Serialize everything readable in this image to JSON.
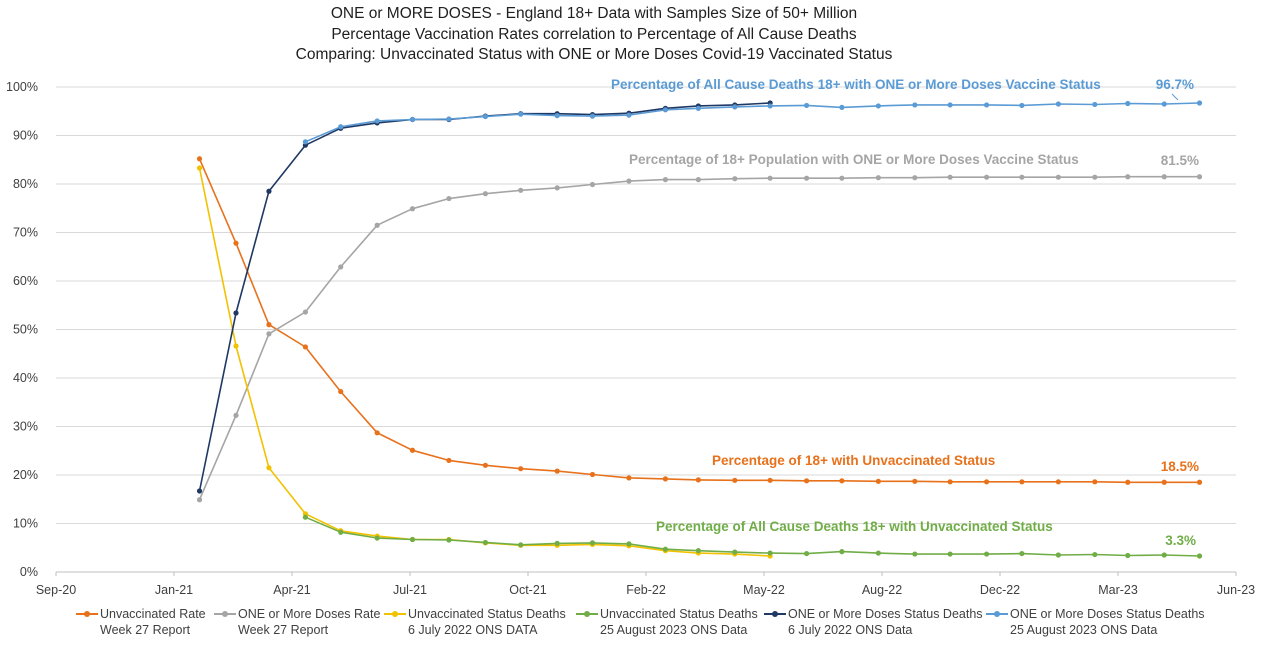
{
  "title_lines": [
    "ONE or MORE DOSES - England 18+ Data with Samples Size of 50+ Million",
    "Percentage Vaccination Rates correlation to Percentage of All Cause Deaths",
    "Comparing: Unvaccinated Status with ONE or More Doses Covid-19 Vaccinated Status"
  ],
  "legend": [
    {
      "line1": "Unvaccinated Rate",
      "line2": "Week 27 Report"
    },
    {
      "line1": "ONE or More Doses Rate",
      "line2": "Week 27 Report"
    },
    {
      "line1": "Unvaccinated Status Deaths",
      "line2": "6 July 2022 ONS DATA"
    },
    {
      "line1": "Unvaccinated Status Deaths",
      "line2": "25 August 2023 ONS Data"
    },
    {
      "line1": "ONE or More Doses Status Deaths",
      "line2": "6 July 2022 ONS Data"
    },
    {
      "line1": "ONE or More Doses Status Deaths",
      "line2": "25 August 2023 ONS Data"
    }
  ],
  "chart_data": {
    "type": "line",
    "title": "ONE or MORE DOSES - England 18+ Data with Samples Size of 50+ Million",
    "xlabel": "",
    "ylabel": "",
    "x_ticks": [
      "Sep-20",
      "Jan-21",
      "Apr-21",
      "Jul-21",
      "Oct-21",
      "Feb-22",
      "May-22",
      "Aug-22",
      "Dec-22",
      "Mar-23",
      "Jun-23"
    ],
    "y_ticks": [
      "0%",
      "10%",
      "20%",
      "30%",
      "40%",
      "50%",
      "60%",
      "70%",
      "80%",
      "90%",
      "100%"
    ],
    "xlim": [
      "2020-09-01",
      "2023-06-01"
    ],
    "ylim": [
      0,
      100
    ],
    "grid": "horizontal",
    "legend_position": "bottom",
    "series": [
      {
        "name": "Unvaccinated Rate Week 27 Report",
        "color": "#E8711B",
        "points": [
          [
            "2021-01-01",
            85.2
          ],
          [
            "2021-02-01",
            67.8
          ],
          [
            "2021-03-01",
            51.0
          ],
          [
            "2021-04-01",
            46.4
          ],
          [
            "2021-05-01",
            37.2
          ],
          [
            "2021-06-01",
            28.7
          ],
          [
            "2021-07-01",
            25.1
          ],
          [
            "2021-08-01",
            23.0
          ],
          [
            "2021-09-01",
            22.0
          ],
          [
            "2021-10-01",
            21.3
          ],
          [
            "2021-11-01",
            20.8
          ],
          [
            "2021-12-01",
            20.1
          ],
          [
            "2022-01-01",
            19.4
          ],
          [
            "2022-02-01",
            19.2
          ],
          [
            "2022-03-01",
            19.0
          ],
          [
            "2022-04-01",
            18.9
          ],
          [
            "2022-05-01",
            18.9
          ],
          [
            "2022-06-01",
            18.8
          ],
          [
            "2022-07-01",
            18.8
          ],
          [
            "2022-08-01",
            18.7
          ],
          [
            "2022-09-01",
            18.7
          ],
          [
            "2022-10-01",
            18.6
          ],
          [
            "2022-11-01",
            18.6
          ],
          [
            "2022-12-01",
            18.6
          ],
          [
            "2023-01-01",
            18.6
          ],
          [
            "2023-02-01",
            18.6
          ],
          [
            "2023-03-01",
            18.5
          ],
          [
            "2023-04-01",
            18.5
          ],
          [
            "2023-05-01",
            18.5
          ]
        ]
      },
      {
        "name": "ONE or More Doses Rate Week 27 Report",
        "color": "#A5A5A5",
        "points": [
          [
            "2021-01-01",
            14.9
          ],
          [
            "2021-02-01",
            32.3
          ],
          [
            "2021-03-01",
            49.1
          ],
          [
            "2021-04-01",
            53.6
          ],
          [
            "2021-05-01",
            62.9
          ],
          [
            "2021-06-01",
            71.5
          ],
          [
            "2021-07-01",
            74.9
          ],
          [
            "2021-08-01",
            77.0
          ],
          [
            "2021-09-01",
            78.0
          ],
          [
            "2021-10-01",
            78.7
          ],
          [
            "2021-11-01",
            79.2
          ],
          [
            "2021-12-01",
            79.9
          ],
          [
            "2022-01-01",
            80.6
          ],
          [
            "2022-02-01",
            80.9
          ],
          [
            "2022-03-01",
            80.9
          ],
          [
            "2022-04-01",
            81.1
          ],
          [
            "2022-05-01",
            81.2
          ],
          [
            "2022-06-01",
            81.2
          ],
          [
            "2022-07-01",
            81.2
          ],
          [
            "2022-08-01",
            81.3
          ],
          [
            "2022-09-01",
            81.3
          ],
          [
            "2022-10-01",
            81.4
          ],
          [
            "2022-11-01",
            81.4
          ],
          [
            "2022-12-01",
            81.4
          ],
          [
            "2023-01-01",
            81.4
          ],
          [
            "2023-02-01",
            81.4
          ],
          [
            "2023-03-01",
            81.5
          ],
          [
            "2023-04-01",
            81.5
          ],
          [
            "2023-05-01",
            81.5
          ]
        ]
      },
      {
        "name": "Unvaccinated Status Deaths 6 July 2022 ONS DATA",
        "color": "#F2C200",
        "points": [
          [
            "2021-01-01",
            83.3
          ],
          [
            "2021-02-01",
            46.6
          ],
          [
            "2021-03-01",
            21.5
          ],
          [
            "2021-04-01",
            12.0
          ],
          [
            "2021-05-01",
            8.5
          ],
          [
            "2021-06-01",
            7.4
          ],
          [
            "2021-07-01",
            6.7
          ],
          [
            "2021-08-01",
            6.7
          ],
          [
            "2021-09-01",
            6.0
          ],
          [
            "2021-10-01",
            5.5
          ],
          [
            "2021-11-01",
            5.5
          ],
          [
            "2021-12-01",
            5.7
          ],
          [
            "2022-01-01",
            5.4
          ],
          [
            "2022-02-01",
            4.4
          ],
          [
            "2022-03-01",
            3.9
          ],
          [
            "2022-04-01",
            3.7
          ],
          [
            "2022-05-01",
            3.3
          ]
        ]
      },
      {
        "name": "Unvaccinated Status Deaths 25 August 2023 ONS Data",
        "color": "#70AD47",
        "points": [
          [
            "2021-04-01",
            11.3
          ],
          [
            "2021-05-01",
            8.2
          ],
          [
            "2021-06-01",
            7.0
          ],
          [
            "2021-07-01",
            6.7
          ],
          [
            "2021-08-01",
            6.6
          ],
          [
            "2021-09-01",
            6.1
          ],
          [
            "2021-10-01",
            5.6
          ],
          [
            "2021-11-01",
            5.9
          ],
          [
            "2021-12-01",
            6.0
          ],
          [
            "2022-01-01",
            5.8
          ],
          [
            "2022-02-01",
            4.7
          ],
          [
            "2022-03-01",
            4.4
          ],
          [
            "2022-04-01",
            4.1
          ],
          [
            "2022-05-01",
            3.9
          ],
          [
            "2022-06-01",
            3.8
          ],
          [
            "2022-07-01",
            4.2
          ],
          [
            "2022-08-01",
            3.9
          ],
          [
            "2022-09-01",
            3.7
          ],
          [
            "2022-10-01",
            3.7
          ],
          [
            "2022-11-01",
            3.7
          ],
          [
            "2022-12-01",
            3.8
          ],
          [
            "2023-01-01",
            3.5
          ],
          [
            "2023-02-01",
            3.6
          ],
          [
            "2023-03-01",
            3.4
          ],
          [
            "2023-04-01",
            3.5
          ],
          [
            "2023-05-01",
            3.3
          ]
        ]
      },
      {
        "name": "ONE or More Doses Status Deaths 6 July 2022 ONS Data",
        "color": "#1F3864",
        "points": [
          [
            "2021-01-01",
            16.7
          ],
          [
            "2021-02-01",
            53.4
          ],
          [
            "2021-03-01",
            78.5
          ],
          [
            "2021-04-01",
            88.0
          ],
          [
            "2021-05-01",
            91.5
          ],
          [
            "2021-06-01",
            92.6
          ],
          [
            "2021-07-01",
            93.3
          ],
          [
            "2021-08-01",
            93.3
          ],
          [
            "2021-09-01",
            94.0
          ],
          [
            "2021-10-01",
            94.5
          ],
          [
            "2021-11-01",
            94.5
          ],
          [
            "2021-12-01",
            94.3
          ],
          [
            "2022-01-01",
            94.6
          ],
          [
            "2022-02-01",
            95.6
          ],
          [
            "2022-03-01",
            96.1
          ],
          [
            "2022-04-01",
            96.3
          ],
          [
            "2022-05-01",
            96.7
          ]
        ]
      },
      {
        "name": "ONE or More Doses Status Deaths 25 August 2023 ONS Data",
        "color": "#5B9BD5",
        "points": [
          [
            "2021-04-01",
            88.7
          ],
          [
            "2021-05-01",
            91.8
          ],
          [
            "2021-06-01",
            93.0
          ],
          [
            "2021-07-01",
            93.3
          ],
          [
            "2021-08-01",
            93.4
          ],
          [
            "2021-09-01",
            93.9
          ],
          [
            "2021-10-01",
            94.4
          ],
          [
            "2021-11-01",
            94.1
          ],
          [
            "2021-12-01",
            94.0
          ],
          [
            "2022-01-01",
            94.2
          ],
          [
            "2022-02-01",
            95.3
          ],
          [
            "2022-03-01",
            95.6
          ],
          [
            "2022-04-01",
            95.9
          ],
          [
            "2022-05-01",
            96.1
          ],
          [
            "2022-06-01",
            96.2
          ],
          [
            "2022-07-01",
            95.8
          ],
          [
            "2022-08-01",
            96.1
          ],
          [
            "2022-09-01",
            96.3
          ],
          [
            "2022-10-01",
            96.3
          ],
          [
            "2022-11-01",
            96.3
          ],
          [
            "2022-12-01",
            96.2
          ],
          [
            "2023-01-01",
            96.5
          ],
          [
            "2023-02-01",
            96.4
          ],
          [
            "2023-03-01",
            96.6
          ],
          [
            "2023-04-01",
            96.5
          ],
          [
            "2023-05-01",
            96.7
          ]
        ]
      }
    ],
    "annotations": [
      {
        "text": "Percentage of All Cause Deaths 18+ with ONE or More Doses Vaccine Status",
        "color": "#5B9BD5"
      },
      {
        "text": "96.7%",
        "color": "#5B9BD5"
      },
      {
        "text": "Percentage of 18+ Population  with ONE or More Doses Vaccine Status",
        "color": "#A5A5A5"
      },
      {
        "text": "81.5%",
        "color": "#A5A5A5"
      },
      {
        "text": "Percentage of 18+ with Unvaccinated Status",
        "color": "#E8711B"
      },
      {
        "text": "18.5%",
        "color": "#E8711B"
      },
      {
        "text": "Percentage of All Cause Deaths 18+ with Unvaccinated Status",
        "color": "#70AD47"
      },
      {
        "text": "3.3%",
        "color": "#70AD47"
      }
    ]
  }
}
